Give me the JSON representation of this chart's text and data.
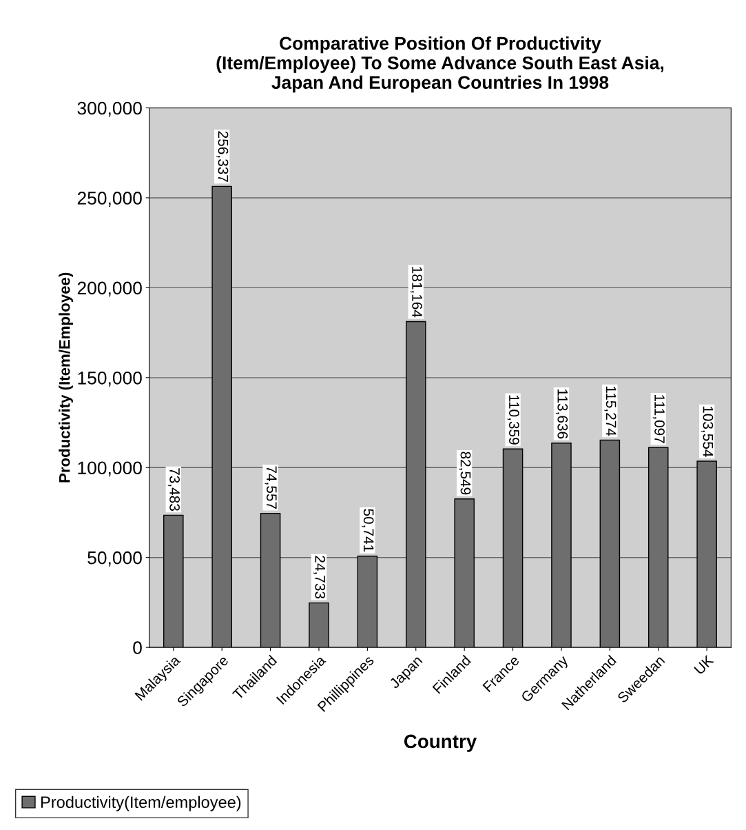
{
  "chart_data": {
    "type": "bar",
    "title": "Comparative Position Of Productivity\n(Item/Employee) To Some Advance South East Asia,\nJapan And European Countries In 1998",
    "xlabel": "Country",
    "ylabel": "Productivity (Item/Employee)",
    "categories": [
      "Malaysia",
      "Singapore",
      "Thailand",
      "Indonesia",
      "Phillippines",
      "Japan",
      "Finland",
      "France",
      "Germany",
      "Natherland",
      "Sweedan",
      "UK"
    ],
    "series": [
      {
        "name": "Productivity(Item/employee)",
        "color": "#6e6e6e",
        "values": [
          73483,
          256337,
          74557,
          24733,
          50741,
          181164,
          82549,
          110359,
          113636,
          115274,
          111097,
          103554
        ],
        "value_labels": [
          "73,483",
          "256,337",
          "74,557",
          "24,733",
          "50,741",
          "181,164",
          "82,549",
          "110,359",
          "113,636",
          "115,274",
          "111,097",
          "103,554"
        ]
      }
    ],
    "ylim": [
      0,
      300000
    ],
    "yticks": [
      {
        "value": 0,
        "label": "0"
      },
      {
        "value": 50000,
        "label": "50,000"
      },
      {
        "value": 100000,
        "label": "100,000"
      },
      {
        "value": 150000,
        "label": "150,000"
      },
      {
        "value": 200000,
        "label": "200,000"
      },
      {
        "value": 250000,
        "label": "250,000"
      },
      {
        "value": 300000,
        "label": "300,000"
      }
    ],
    "grid": "y",
    "legend": "bottom left"
  }
}
